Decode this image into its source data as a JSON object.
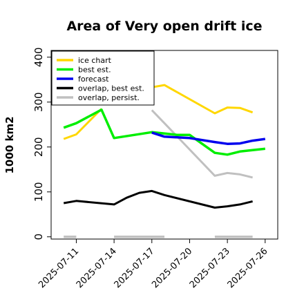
{
  "chart_data": {
    "type": "line",
    "title": "Area of Very open drift ice",
    "ylabel": "1000 km2",
    "xlabel": "",
    "ylim": [
      -5,
      415
    ],
    "yticks": [
      0,
      100,
      200,
      300,
      400
    ],
    "xticks": [
      "2025-07-11",
      "2025-07-14",
      "2025-07-17",
      "2025-07-20",
      "2025-07-23",
      "2025-07-26"
    ],
    "highlight_tick": "2025-07-17",
    "highlight_color": "#228b22",
    "xlim": [
      "2025-07-09",
      "2025-07-27"
    ],
    "legend_position": "top-left",
    "series": [
      {
        "name": "ice chart",
        "color": "#ffd700",
        "segments": [
          {
            "x": [
              "2025-07-10",
              "2025-07-11",
              "2025-07-13"
            ],
            "y": [
              218,
              228,
              285
            ]
          },
          {
            "x": [
              "2025-07-17",
              "2025-07-18",
              "2025-07-22",
              "2025-07-23",
              "2025-07-24",
              "2025-07-25"
            ],
            "y": [
              333,
              338,
              275,
              288,
              287,
              277
            ]
          }
        ]
      },
      {
        "name": "best est.",
        "color": "#00ee00",
        "segments": [
          {
            "x": [
              "2025-07-10",
              "2025-07-11",
              "2025-07-13",
              "2025-07-14",
              "2025-07-17",
              "2025-07-19",
              "2025-07-20",
              "2025-07-22",
              "2025-07-23",
              "2025-07-24",
              "2025-07-25",
              "2025-07-26"
            ],
            "y": [
              243,
              253,
              283,
              220,
              233,
              227,
              227,
              187,
              183,
              190,
              193,
              196
            ]
          }
        ]
      },
      {
        "name": "forecast",
        "color": "#0000ee",
        "segments": [
          {
            "x": [
              "2025-07-17",
              "2025-07-18",
              "2025-07-20",
              "2025-07-22",
              "2025-07-23",
              "2025-07-24",
              "2025-07-25",
              "2025-07-26"
            ],
            "y": [
              232,
              223,
              220,
              211,
              207,
              208,
              214,
              218
            ]
          }
        ]
      },
      {
        "name": "overlap, best est.",
        "color": "#000000",
        "segments": [
          {
            "x": [
              "2025-07-10",
              "2025-07-11",
              "2025-07-14",
              "2025-07-15",
              "2025-07-16",
              "2025-07-17",
              "2025-07-18",
              "2025-07-22",
              "2025-07-23",
              "2025-07-24",
              "2025-07-25"
            ],
            "y": [
              75,
              80,
              72,
              87,
              98,
              102,
              93,
              65,
              68,
              72,
              79
            ]
          }
        ]
      },
      {
        "name": "overlap, persist.",
        "color": "#c0c0c0",
        "segments": [
          {
            "x": [
              "2025-07-10",
              "2025-07-11"
            ],
            "y": [
              0,
              0
            ]
          },
          {
            "x": [
              "2025-07-14",
              "2025-07-18"
            ],
            "y": [
              0,
              0
            ]
          },
          {
            "x": [
              "2025-07-22",
              "2025-07-25"
            ],
            "y": [
              0,
              0
            ]
          },
          {
            "x": [
              "2025-07-17",
              "2025-07-18",
              "2025-07-22",
              "2025-07-23",
              "2025-07-24",
              "2025-07-25"
            ],
            "y": [
              282,
              253,
              136,
              142,
              139,
              132
            ]
          }
        ]
      }
    ]
  }
}
